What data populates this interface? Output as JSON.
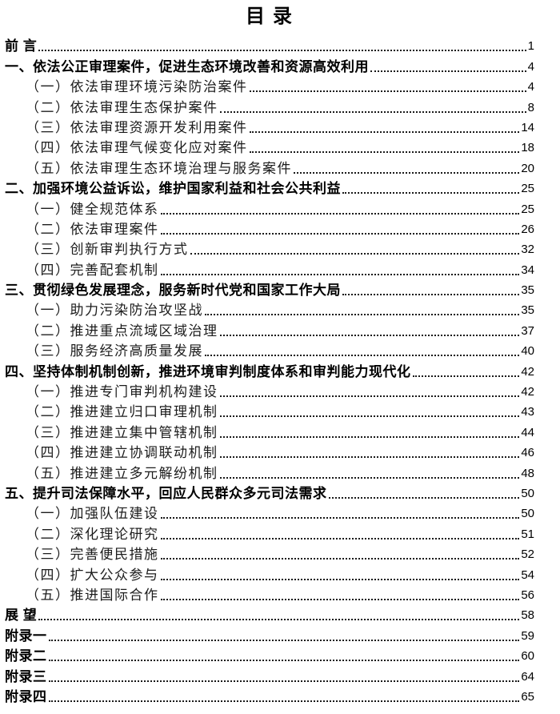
{
  "document": {
    "title": "目 录",
    "colors": {
      "background": "#ffffff",
      "text": "#000000",
      "subentry_text": "#1c1c1c",
      "dot_leader": "#1a1a1a"
    },
    "entries": [
      {
        "level": 0,
        "label": "前 言",
        "page": "1"
      },
      {
        "level": 0,
        "label": "一、依法公正审理案件，促进生态环境改善和资源高效利用",
        "page": "4"
      },
      {
        "level": 1,
        "label": "（一）依法审理环境污染防治案件",
        "page": "4"
      },
      {
        "level": 1,
        "label": "（二）依法审理生态保护案件",
        "page": "8"
      },
      {
        "level": 1,
        "label": "（三）依法审理资源开发利用案件",
        "page": "14"
      },
      {
        "level": 1,
        "label": "（四）依法审理气候变化应对案件",
        "page": "18"
      },
      {
        "level": 1,
        "label": "（五）依法审理生态环境治理与服务案件",
        "page": "20"
      },
      {
        "level": 0,
        "label": "二、加强环境公益诉讼，维护国家利益和社会公共利益",
        "page": "25"
      },
      {
        "level": 1,
        "label": "（一）健全规范体系",
        "page": "25"
      },
      {
        "level": 1,
        "label": "（二）依法审理案件",
        "page": "26"
      },
      {
        "level": 1,
        "label": "（三）创新审判执行方式",
        "page": "32"
      },
      {
        "level": 1,
        "label": "（四）完善配套机制",
        "page": "34"
      },
      {
        "level": 0,
        "label": "三、贯彻绿色发展理念，服务新时代党和国家工作大局",
        "page": "35"
      },
      {
        "level": 1,
        "label": "（一）助力污染防治攻坚战",
        "page": "35"
      },
      {
        "level": 1,
        "label": "（二）推进重点流域区域治理",
        "page": "37"
      },
      {
        "level": 1,
        "label": "（三）服务经济高质量发展",
        "page": "40"
      },
      {
        "level": 0,
        "label": "四、坚持体制机制创新，推进环境审判制度体系和审判能力现代化",
        "page": "42"
      },
      {
        "level": 1,
        "label": "（一）推进专门审判机构建设",
        "page": "42"
      },
      {
        "level": 1,
        "label": "（二）推进建立归口审理机制",
        "page": "43"
      },
      {
        "level": 1,
        "label": "（三）推进建立集中管辖机制",
        "page": "44"
      },
      {
        "level": 1,
        "label": "（四）推进建立协调联动机制",
        "page": "46"
      },
      {
        "level": 1,
        "label": "（五）推进建立多元解纷机制",
        "page": "48"
      },
      {
        "level": 0,
        "label": "五、提升司法保障水平，回应人民群众多元司法需求",
        "page": "50"
      },
      {
        "level": 1,
        "label": "（一）加强队伍建设",
        "page": "50"
      },
      {
        "level": 1,
        "label": "（二）深化理论研究",
        "page": "51"
      },
      {
        "level": 1,
        "label": "（三）完善便民措施",
        "page": "52"
      },
      {
        "level": 1,
        "label": "（四）扩大公众参与",
        "page": "54"
      },
      {
        "level": 1,
        "label": "（五）推进国际合作",
        "page": "56"
      },
      {
        "level": 0,
        "label": "展 望",
        "page": "58"
      },
      {
        "level": 0,
        "label": "附录一",
        "page": "59"
      },
      {
        "level": 0,
        "label": "附录二",
        "page": "60"
      },
      {
        "level": 0,
        "label": "附录三",
        "page": "64"
      },
      {
        "level": 0,
        "label": "附录四",
        "page": "65"
      }
    ]
  }
}
